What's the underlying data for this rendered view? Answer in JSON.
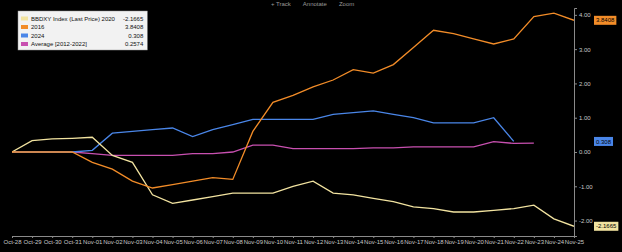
{
  "chart_data": {
    "type": "line",
    "annotations": [
      "+ Track",
      "Annotate",
      "Zoom"
    ],
    "categories": [
      "Oct-28",
      "Oct-29",
      "Oct-30",
      "Oct-31",
      "Nov-01",
      "Nov-02",
      "Nov-03",
      "Nov-04",
      "Nov-05",
      "Nov-06",
      "Nov-07",
      "Nov-08",
      "Nov-09",
      "Nov-10",
      "Nov-11",
      "Nov-12",
      "Nov-13",
      "Nov-14",
      "Nov-15",
      "Nov-16",
      "Nov-17",
      "Nov-18",
      "Nov-19",
      "Nov-20",
      "Nov-21",
      "Nov-22",
      "Nov-23",
      "Nov-24",
      "Nov-25"
    ],
    "series": [
      {
        "name": "BBDXY Index (Last Price) 2020",
        "color": "#f2e3a0",
        "data_labels": true,
        "values": [
          0,
          0.33,
          0.38,
          0.4,
          0.43,
          -0.1,
          -0.3,
          -1.25,
          -1.5,
          -1.4,
          -1.3,
          -1.2,
          -1.2,
          -1.2,
          -1.0,
          -0.85,
          -1.2,
          -1.25,
          -1.35,
          -1.45,
          -1.6,
          -1.65,
          -1.75,
          -1.75,
          -1.7,
          -1.65,
          -1.55,
          -1.95,
          -2.1665
        ]
      },
      {
        "name": "2016",
        "color": "#f28c28",
        "data_labels": true,
        "values": [
          0,
          0,
          0,
          0,
          -0.3,
          -0.5,
          -0.85,
          -1.05,
          -0.95,
          -0.85,
          -0.75,
          -0.8,
          0.6,
          1.45,
          1.65,
          1.9,
          2.1,
          2.4,
          2.3,
          2.55,
          3.05,
          3.55,
          3.45,
          3.3,
          3.15,
          3.3,
          3.95,
          4.05,
          3.8408
        ]
      },
      {
        "name": "2024",
        "color": "#4a86e8",
        "data_labels": true,
        "values": [
          0,
          0,
          0,
          0,
          0.05,
          0.55,
          0.6,
          0.65,
          0.7,
          0.45,
          0.65,
          0.8,
          0.95,
          0.95,
          0.95,
          0.95,
          1.1,
          1.15,
          1.2,
          1.1,
          1.0,
          0.85,
          0.85,
          0.85,
          1.0,
          0.308,
          null,
          null,
          null
        ]
      },
      {
        "name": "Average [2012-2022]",
        "color": "#c850b0",
        "values": [
          0,
          0,
          0,
          0,
          -0.05,
          -0.1,
          -0.1,
          -0.1,
          -0.1,
          -0.05,
          -0.05,
          0.0,
          0.2,
          0.2,
          0.1,
          0.1,
          0.1,
          0.1,
          0.12,
          0.12,
          0.15,
          0.15,
          0.15,
          0.15,
          0.3,
          0.25,
          0.2574,
          null,
          null
        ]
      }
    ],
    "ylim": [
      -2.45,
      4.2
    ],
    "yticks": [
      {
        "value": -2,
        "label": "-2.00"
      },
      {
        "value": -1,
        "label": "-1.00"
      },
      {
        "value": 0,
        "label": "0.00"
      },
      {
        "value": 1,
        "label": "1.00"
      },
      {
        "value": 2,
        "label": "2.00"
      },
      {
        "value": 3,
        "label": "3.00"
      },
      {
        "value": 4,
        "label": "4.00"
      }
    ],
    "grid": false,
    "legend": "top-left"
  }
}
